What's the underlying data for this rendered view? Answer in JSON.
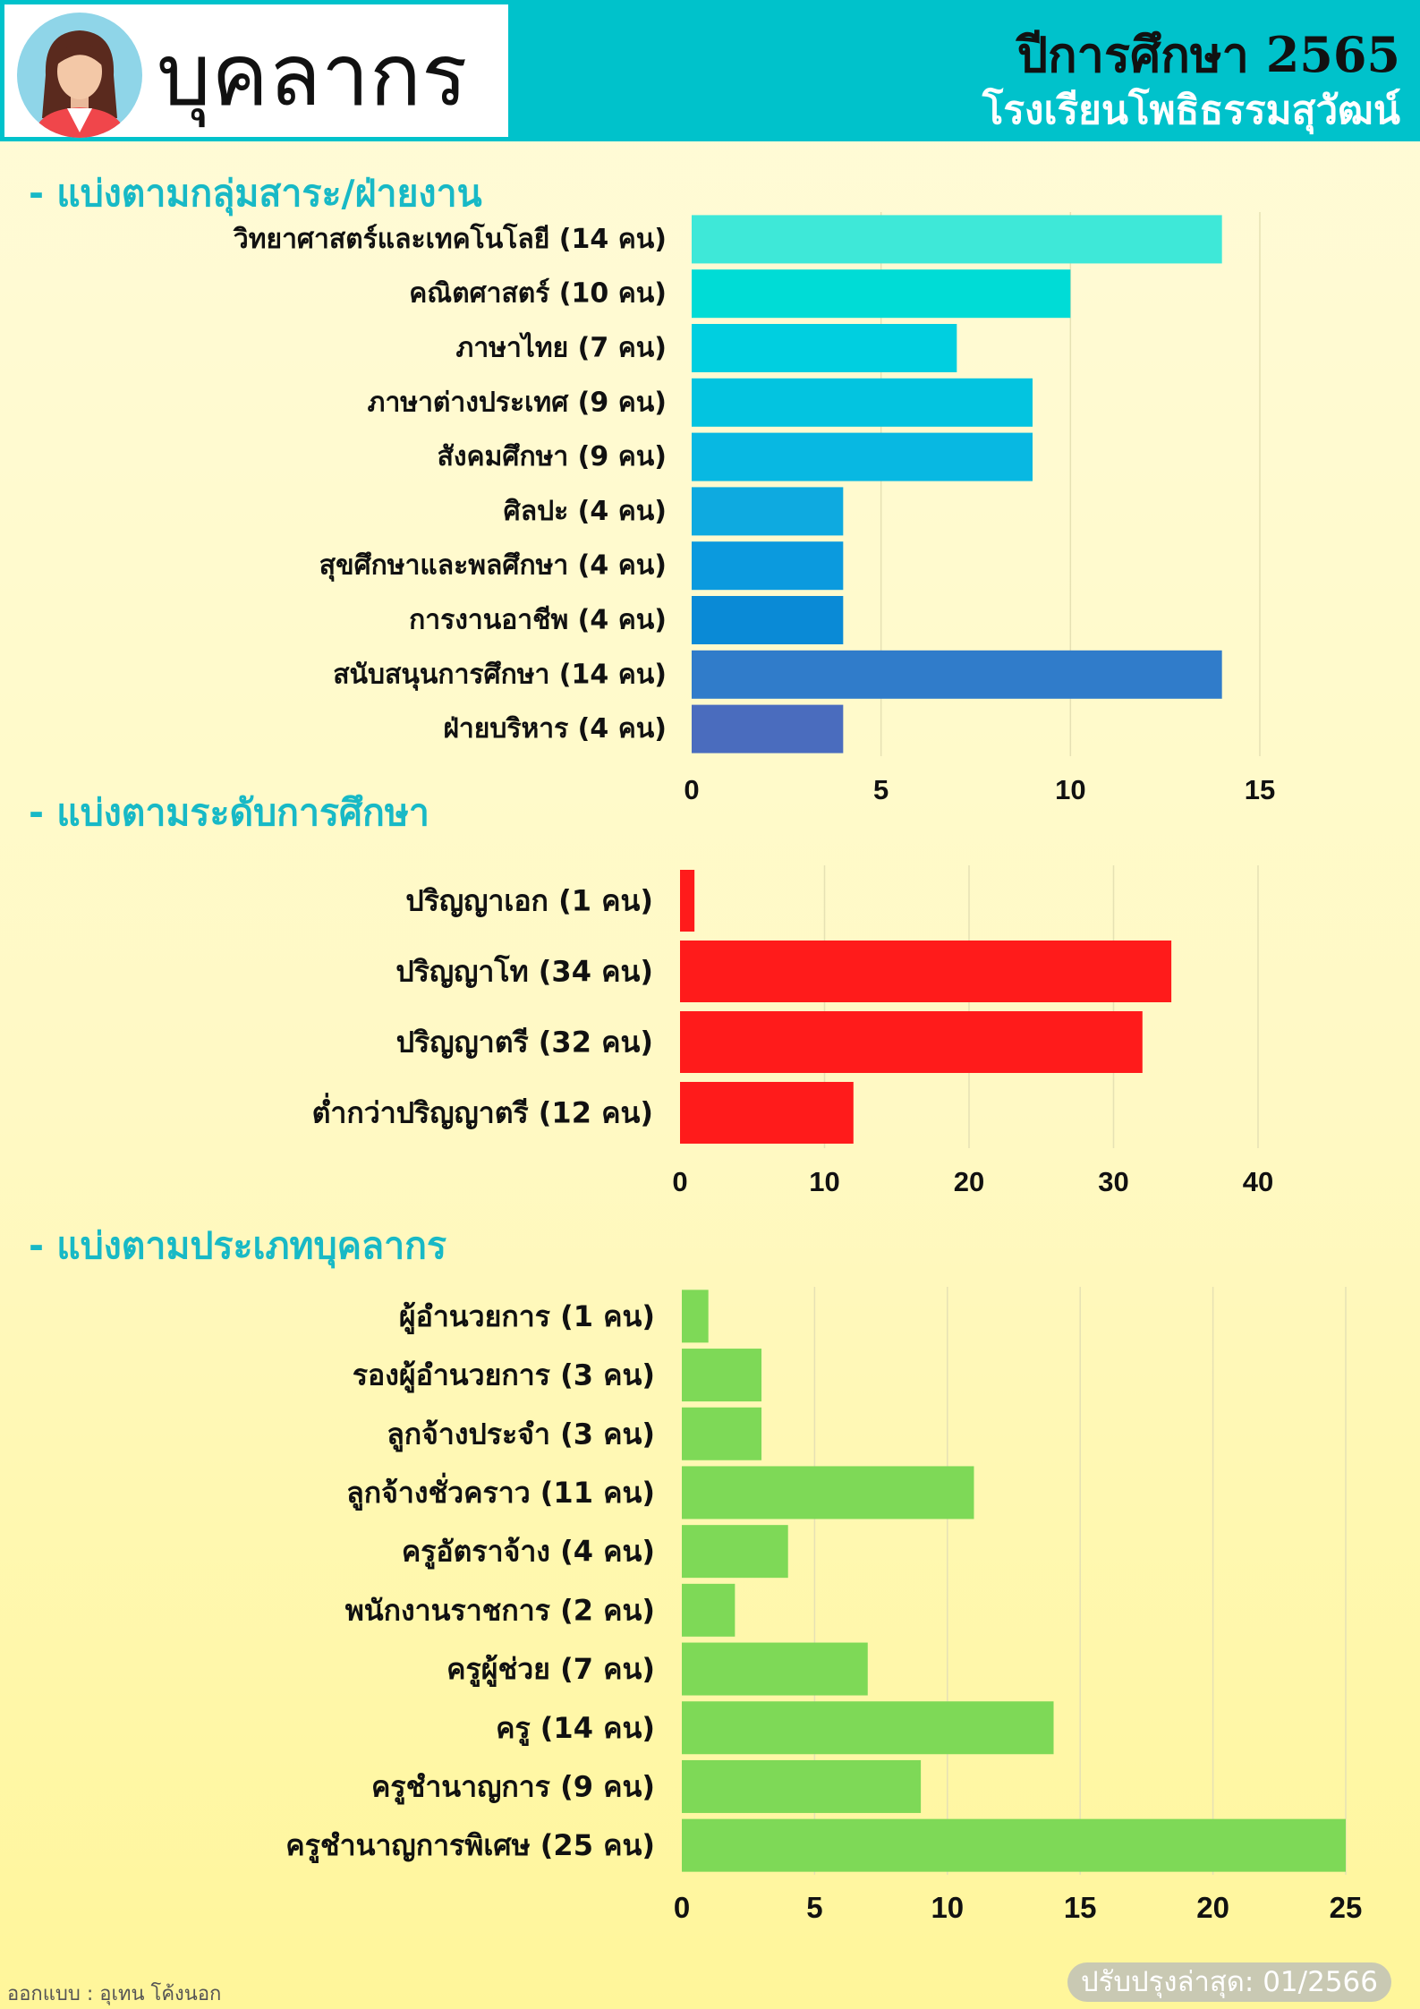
{
  "header": {
    "title": "บุคลากร",
    "school_year": "ปีการศึกษา 2565",
    "school_name": "โรงเรียนโพธิธรรมสุวัฒน์"
  },
  "footer": {
    "credit": "ออกแบบ : อุเทน โค้งนอก",
    "updated": "ปรับปรุงล่าสุด: 01/2566"
  },
  "chart_data": [
    {
      "type": "bar",
      "orientation": "horizontal",
      "title": "- แบ่งตามกลุ่มสาระ/ฝ่ายงาน",
      "categories": [
        "วิทยาศาสตร์และเทคโนโลยี (14 คน)",
        "คณิตศาสตร์ (10 คน)",
        "ภาษาไทย (7 คน)",
        "ภาษาต่างประเทศ (9 คน)",
        "สังคมศึกษา (9 คน)",
        "ศิลปะ (4 คน)",
        "สุขศึกษาและพลศึกษา (4 คน)",
        "การงานอาชีพ (4 คน)",
        "สนับสนุนการศึกษา (14 คน)",
        "ฝ่ายบริหาร (4 คน)"
      ],
      "values": [
        14,
        10,
        7,
        9,
        9,
        4,
        4,
        4,
        14,
        4
      ],
      "colors": [
        "#3ee8d8",
        "#00dcd6",
        "#00cfe0",
        "#03c4e0",
        "#08b8e2",
        "#0eaae0",
        "#0b9ade",
        "#0a8ad6",
        "#307cca",
        "#4a6cbe"
      ],
      "xlim": [
        0,
        15
      ],
      "ticks": [
        0,
        5,
        10,
        15
      ],
      "grid": true
    },
    {
      "type": "bar",
      "orientation": "horizontal",
      "title": "- แบ่งตามระดับการศึกษา",
      "categories": [
        "ปริญญาเอก (1 คน)",
        "ปริญญาโท (34 คน)",
        "ปริญญาตรี (32 คน)",
        "ต่ำกว่าปริญญาตรี (12 คน)"
      ],
      "values": [
        1,
        34,
        32,
        12
      ],
      "colors": [
        "#ff1b1b",
        "#ff1b1b",
        "#ff1b1b",
        "#ff1b1b"
      ],
      "xlim": [
        0,
        40
      ],
      "ticks": [
        0,
        10,
        20,
        30,
        40
      ],
      "grid": true
    },
    {
      "type": "bar",
      "orientation": "horizontal",
      "title": "- แบ่งตามประเภทบุคลากร",
      "categories": [
        "ผู้อำนวยการ (1 คน)",
        "รองผู้อำนวยการ (3 คน)",
        "ลูกจ้างประจำ (3 คน)",
        "ลูกจ้างชั่วคราว (11 คน)",
        "ครูอัตราจ้าง (4 คน)",
        "พนักงานราชการ (2 คน)",
        "ครูผู้ช่วย (7 คน)",
        "ครู (14 คน)",
        "ครูชำนาญการ (9 คน)",
        "ครูชำนาญการพิเศษ (25 คน)"
      ],
      "values": [
        1,
        3,
        3,
        11,
        4,
        2,
        7,
        14,
        9,
        25
      ],
      "colors": [
        "#7ed957",
        "#7ed957",
        "#7ed957",
        "#7ed957",
        "#7ed957",
        "#7ed957",
        "#7ed957",
        "#7ed957",
        "#7ed957",
        "#7ed957"
      ],
      "xlim": [
        0,
        25
      ],
      "ticks": [
        0,
        5,
        10,
        15,
        20,
        25
      ],
      "grid": true
    }
  ]
}
